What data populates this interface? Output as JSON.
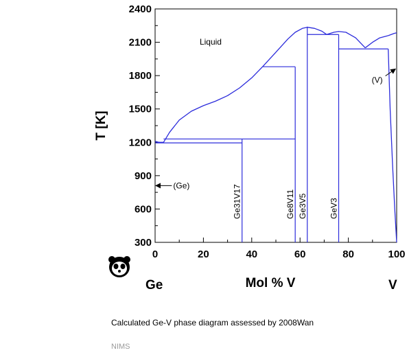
{
  "chart_data": {
    "type": "phase-diagram",
    "xlabel": "Mol % V",
    "ylabel": "T [K]",
    "xlim": [
      0,
      100
    ],
    "ylim": [
      300,
      2400
    ],
    "x_ticks": [
      0,
      20,
      40,
      60,
      80,
      100
    ],
    "y_ticks": [
      300,
      600,
      900,
      1200,
      1500,
      1800,
      2100,
      2400
    ],
    "left_element": "Ge",
    "right_element": "V",
    "line_color": "#2b2bdb",
    "region_labels": [
      {
        "text": "Liquid",
        "x": 23,
        "y": 2080
      }
    ],
    "arrow_labels": [
      {
        "text": "(Ge)",
        "tip_x": 0.3,
        "tip_y": 810,
        "label_x": 7.5,
        "label_y": 810
      },
      {
        "text": "(V)",
        "tip_x": 99.5,
        "tip_y": 1860,
        "label_x": 92.5,
        "label_y": 1760
      }
    ],
    "compounds": [
      {
        "name": "Ge31V17",
        "x": 36,
        "top_T": 1230
      },
      {
        "name": "Ge8V11",
        "x": 58,
        "top_T": 1880
      },
      {
        "name": "Ge3V5",
        "x": 63,
        "top_T": 2240
      },
      {
        "name": "GeV3",
        "x": 76,
        "top_T": 2170
      }
    ],
    "invariant_lines": [
      {
        "T": 1195,
        "x_from": 0,
        "x_to": 36
      },
      {
        "T": 1230,
        "x_from": 3.5,
        "x_to": 58
      },
      {
        "T": 1880,
        "x_from": 44.5,
        "x_to": 58
      },
      {
        "T": 2170,
        "x_from": 63,
        "x_to": 76
      },
      {
        "T": 2040,
        "x_from": 76,
        "x_to": 96.5
      }
    ],
    "curves": [
      {
        "points": [
          [
            0,
            1210
          ],
          [
            1.5,
            1200
          ],
          [
            3.5,
            1200
          ]
        ]
      },
      {
        "points": [
          [
            3.5,
            1200
          ],
          [
            6,
            1290
          ],
          [
            10,
            1400
          ],
          [
            15,
            1480
          ],
          [
            20,
            1530
          ],
          [
            25,
            1570
          ],
          [
            30,
            1620
          ],
          [
            35,
            1690
          ],
          [
            40,
            1780
          ],
          [
            44.5,
            1880
          ]
        ]
      },
      {
        "points": [
          [
            44.5,
            1880
          ],
          [
            50,
            2010
          ],
          [
            55,
            2130
          ],
          [
            58,
            2190
          ],
          [
            61,
            2225
          ],
          [
            63,
            2235
          ],
          [
            66,
            2225
          ],
          [
            69,
            2200
          ],
          [
            71,
            2170
          ]
        ]
      },
      {
        "points": [
          [
            71,
            2170
          ],
          [
            74,
            2190
          ],
          [
            76,
            2197
          ],
          [
            79,
            2190
          ],
          [
            83,
            2140
          ],
          [
            87,
            2050
          ]
        ]
      },
      {
        "points": [
          [
            87,
            2050
          ],
          [
            90,
            2100
          ],
          [
            93,
            2140
          ],
          [
            96.5,
            2160
          ]
        ]
      },
      {
        "points": [
          [
            96.5,
            2160
          ],
          [
            99,
            2180
          ],
          [
            100,
            2185
          ]
        ]
      },
      {
        "points": [
          [
            96.5,
            2040
          ],
          [
            97.3,
            1500
          ],
          [
            98.3,
            1000
          ],
          [
            99.2,
            600
          ],
          [
            100,
            300
          ]
        ]
      }
    ]
  },
  "caption": "Calculated Ge-V phase diagram assessed by 2008Wan",
  "source": "NIMS",
  "logo": "panda-icon"
}
